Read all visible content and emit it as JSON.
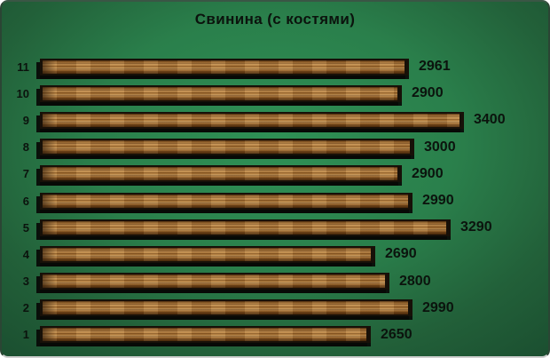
{
  "chart_data": {
    "type": "bar",
    "orientation": "horizontal",
    "title": "Свинина (с костями)",
    "categories": [
      "11",
      "10",
      "9",
      "8",
      "7",
      "6",
      "5",
      "4",
      "3",
      "2",
      "1"
    ],
    "values": [
      2961,
      2900,
      3400,
      3000,
      2900,
      2990,
      3290,
      2690,
      2800,
      2990,
      2650
    ],
    "xlabel": "",
    "ylabel": "",
    "xlim": [
      0,
      3400
    ],
    "grid": false,
    "legend": false,
    "value_labels_shown": true,
    "bar_style": "wood-texture"
  },
  "colors": {
    "background_center": "#2f9156",
    "background_edge": "#1b4f30",
    "bar_wood_base": "#a9743a",
    "bar_outline": "#171008",
    "text": "#0b130d"
  }
}
